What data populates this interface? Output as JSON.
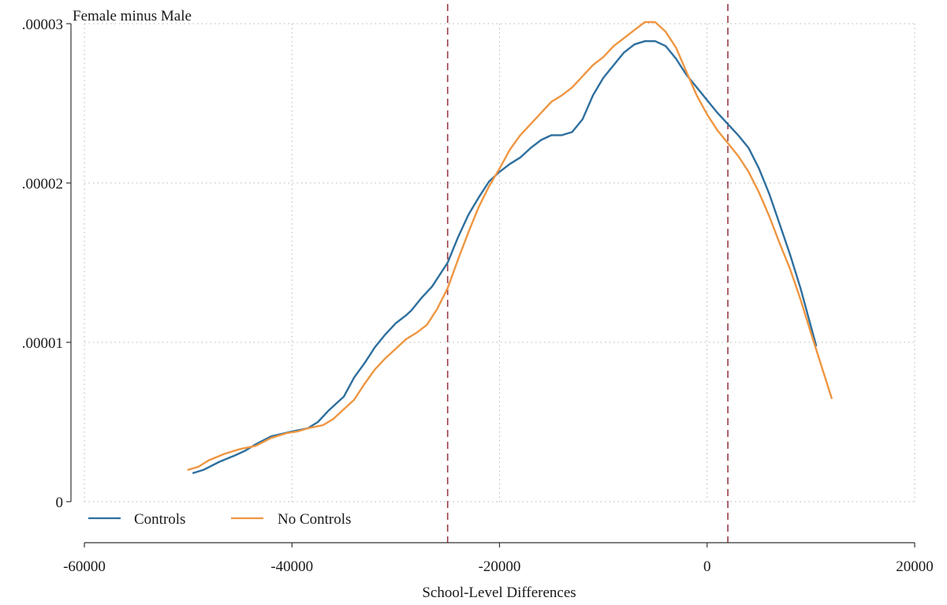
{
  "chart_data": {
    "type": "line",
    "title": "",
    "ylabel": "Female minus Male",
    "xlabel": "School-Level Differences",
    "xlim": [
      -60000,
      20000
    ],
    "ylim": [
      0,
      3e-05
    ],
    "xticks": [
      -60000,
      -40000,
      -20000,
      0,
      20000
    ],
    "xtick_labels": [
      "-60000",
      "-40000",
      "-20000",
      "0",
      "20000"
    ],
    "yticks": [
      0,
      1e-05,
      2e-05,
      3e-05
    ],
    "ytick_labels": [
      "0",
      ".00001",
      ".00002",
      ".00003"
    ],
    "grid": true,
    "legend_position": "bottom-left",
    "reference_lines": {
      "orientation": "vertical",
      "style": "dashed",
      "color": "#9a3b45",
      "x": [
        -25000,
        2000
      ]
    },
    "series": [
      {
        "name": "Controls",
        "color": "#2e6f9e",
        "points": [
          [
            -49500,
            1.8e-06
          ],
          [
            -48500,
            2e-06
          ],
          [
            -47000,
            2.5e-06
          ],
          [
            -45500,
            2.9e-06
          ],
          [
            -44500,
            3.2e-06
          ],
          [
            -43500,
            3.6e-06
          ],
          [
            -42000,
            4.1e-06
          ],
          [
            -40000,
            4.4e-06
          ],
          [
            -38500,
            4.6e-06
          ],
          [
            -37500,
            5e-06
          ],
          [
            -36500,
            5.7e-06
          ],
          [
            -35000,
            6.6e-06
          ],
          [
            -34000,
            7.8e-06
          ],
          [
            -33000,
            8.7e-06
          ],
          [
            -32000,
            9.7e-06
          ],
          [
            -31000,
            1.05e-05
          ],
          [
            -30000,
            1.12e-05
          ],
          [
            -29000,
            1.17e-05
          ],
          [
            -28500,
            1.2e-05
          ],
          [
            -27500,
            1.28e-05
          ],
          [
            -26500,
            1.35e-05
          ],
          [
            -25500,
            1.45e-05
          ],
          [
            -25000,
            1.5e-05
          ],
          [
            -24000,
            1.66e-05
          ],
          [
            -23000,
            1.8e-05
          ],
          [
            -22000,
            1.91e-05
          ],
          [
            -21000,
            2.01e-05
          ],
          [
            -20000,
            2.07e-05
          ],
          [
            -19000,
            2.12e-05
          ],
          [
            -18000,
            2.16e-05
          ],
          [
            -17000,
            2.22e-05
          ],
          [
            -16000,
            2.27e-05
          ],
          [
            -15000,
            2.3e-05
          ],
          [
            -14000,
            2.3e-05
          ],
          [
            -13000,
            2.32e-05
          ],
          [
            -12000,
            2.4e-05
          ],
          [
            -11000,
            2.55e-05
          ],
          [
            -10000,
            2.66e-05
          ],
          [
            -9000,
            2.74e-05
          ],
          [
            -8000,
            2.82e-05
          ],
          [
            -7000,
            2.87e-05
          ],
          [
            -6000,
            2.89e-05
          ],
          [
            -5000,
            2.89e-05
          ],
          [
            -4000,
            2.86e-05
          ],
          [
            -3000,
            2.78e-05
          ],
          [
            -2000,
            2.68e-05
          ],
          [
            -1000,
            2.6e-05
          ],
          [
            0,
            2.52e-05
          ],
          [
            1000,
            2.44e-05
          ],
          [
            2000,
            2.37e-05
          ],
          [
            3000,
            2.3e-05
          ],
          [
            4000,
            2.22e-05
          ],
          [
            5000,
            2.09e-05
          ],
          [
            6000,
            1.93e-05
          ],
          [
            7000,
            1.74e-05
          ],
          [
            8000,
            1.55e-05
          ],
          [
            9000,
            1.34e-05
          ],
          [
            10500,
            9.8e-06
          ]
        ]
      },
      {
        "name": "No Controls",
        "color": "#ee9641",
        "points": [
          [
            -50000,
            2e-06
          ],
          [
            -49000,
            2.2e-06
          ],
          [
            -48000,
            2.6e-06
          ],
          [
            -46500,
            3e-06
          ],
          [
            -45000,
            3.3e-06
          ],
          [
            -43500,
            3.5e-06
          ],
          [
            -42000,
            4e-06
          ],
          [
            -40500,
            4.3e-06
          ],
          [
            -39500,
            4.4e-06
          ],
          [
            -38500,
            4.6e-06
          ],
          [
            -37000,
            4.8e-06
          ],
          [
            -36000,
            5.2e-06
          ],
          [
            -35000,
            5.8e-06
          ],
          [
            -34000,
            6.4e-06
          ],
          [
            -33000,
            7.4e-06
          ],
          [
            -32000,
            8.3e-06
          ],
          [
            -31000,
            9e-06
          ],
          [
            -30000,
            9.6e-06
          ],
          [
            -29000,
            1.02e-05
          ],
          [
            -28000,
            1.06e-05
          ],
          [
            -27000,
            1.11e-05
          ],
          [
            -26000,
            1.21e-05
          ],
          [
            -25000,
            1.34e-05
          ],
          [
            -24000,
            1.52e-05
          ],
          [
            -23000,
            1.69e-05
          ],
          [
            -22000,
            1.85e-05
          ],
          [
            -21000,
            1.98e-05
          ],
          [
            -20000,
            2.09e-05
          ],
          [
            -19000,
            2.21e-05
          ],
          [
            -18000,
            2.3e-05
          ],
          [
            -17000,
            2.37e-05
          ],
          [
            -16000,
            2.44e-05
          ],
          [
            -15000,
            2.51e-05
          ],
          [
            -14000,
            2.55e-05
          ],
          [
            -13000,
            2.6e-05
          ],
          [
            -12000,
            2.67e-05
          ],
          [
            -11000,
            2.74e-05
          ],
          [
            -10000,
            2.79e-05
          ],
          [
            -9000,
            2.86e-05
          ],
          [
            -8000,
            2.91e-05
          ],
          [
            -7000,
            2.96e-05
          ],
          [
            -6000,
            3.01e-05
          ],
          [
            -5000,
            3.01e-05
          ],
          [
            -4000,
            2.95e-05
          ],
          [
            -3000,
            2.85e-05
          ],
          [
            -2000,
            2.7e-05
          ],
          [
            -1000,
            2.55e-05
          ],
          [
            0,
            2.43e-05
          ],
          [
            1000,
            2.33e-05
          ],
          [
            2000,
            2.25e-05
          ],
          [
            3000,
            2.17e-05
          ],
          [
            4000,
            2.07e-05
          ],
          [
            5000,
            1.94e-05
          ],
          [
            6000,
            1.79e-05
          ],
          [
            7000,
            1.62e-05
          ],
          [
            8000,
            1.46e-05
          ],
          [
            9000,
            1.27e-05
          ],
          [
            10000,
            1.06e-05
          ],
          [
            12000,
            6.5e-06
          ]
        ]
      }
    ]
  }
}
